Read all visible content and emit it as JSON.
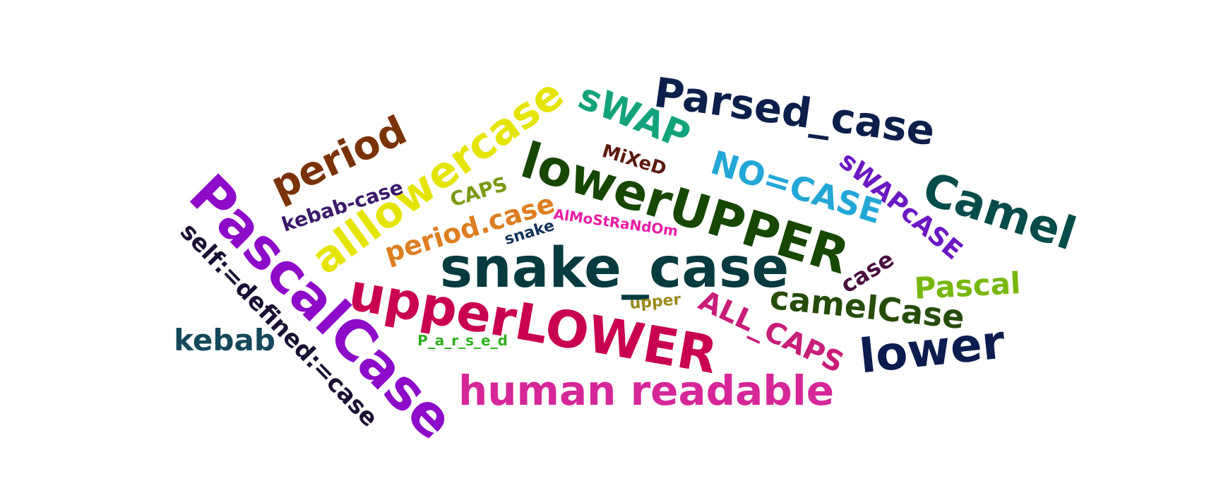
{
  "words": [
    {
      "id": "w-snake-case",
      "text": "snake_case",
      "color": "#073b40"
    },
    {
      "id": "w-upper-lower",
      "text": "upperLOWER",
      "color": "#c9004f"
    },
    {
      "id": "w-lower-upper",
      "text": "lowerUPPER",
      "color": "#174700"
    },
    {
      "id": "w-pascalcase",
      "text": "PascalCase",
      "color": "#8d0bc9"
    },
    {
      "id": "w-parsed-case",
      "text": "Parsed_case",
      "color": "#0c1f4b"
    },
    {
      "id": "w-human-readable",
      "text": "human readable",
      "color": "#d62798"
    },
    {
      "id": "w-alllowercase",
      "text": "alllowercase",
      "color": "#e4e400"
    },
    {
      "id": "w-camel",
      "text": "Camel",
      "color": "#064c4a"
    },
    {
      "id": "w-lower",
      "text": "lower",
      "color": "#0c1c4f"
    },
    {
      "id": "w-period",
      "text": "period",
      "color": "#7a3208"
    },
    {
      "id": "w-swap",
      "text": "sWAP",
      "color": "#13a37a"
    },
    {
      "id": "w-no-case",
      "text": "NO=CASE",
      "color": "#23a7d6"
    },
    {
      "id": "w-camelcase",
      "text": "camelCase",
      "color": "#264d0b"
    },
    {
      "id": "w-self-defined",
      "text": "self:=defined:=case",
      "color": "#1a1033"
    },
    {
      "id": "w-all-caps",
      "text": "ALL_CAPS",
      "color": "#c81d78"
    },
    {
      "id": "w-swapcase",
      "text": "sWAPcASE",
      "color": "#6a18c2"
    },
    {
      "id": "w-period-case",
      "text": "period.case",
      "color": "#dd7e20"
    },
    {
      "id": "w-pascal",
      "text": "Pascal",
      "color": "#77b80e"
    },
    {
      "id": "w-kebab",
      "text": "kebab",
      "color": "#14485a"
    },
    {
      "id": "w-kebab-case",
      "text": "kebab-case",
      "color": "#3c1a6b"
    },
    {
      "id": "w-caps",
      "text": "CAPS",
      "color": "#7a9a12"
    },
    {
      "id": "w-mixed",
      "text": "MiXeD",
      "color": "#5b1a0d"
    },
    {
      "id": "w-almostrandom",
      "text": "AlMoStRaNdOm",
      "color": "#e81ea6"
    },
    {
      "id": "w-snake",
      "text": "snake",
      "color": "#16345c"
    },
    {
      "id": "w-case",
      "text": "case",
      "color": "#4a1040"
    },
    {
      "id": "w-upper",
      "text": "upper",
      "color": "#9a8a1a"
    },
    {
      "id": "w-p-a-r-s-e-d",
      "text": "P_a_r_s_e_d",
      "color": "#2fae1d"
    }
  ]
}
